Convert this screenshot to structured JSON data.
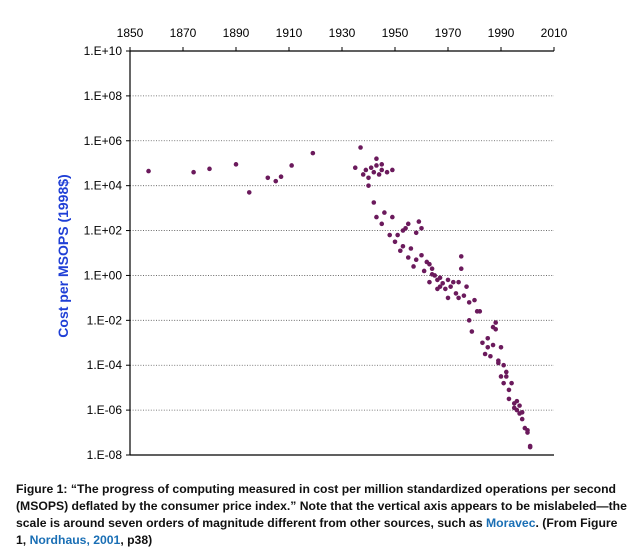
{
  "chart_data": {
    "type": "scatter",
    "title": "",
    "ylabel": "Cost per MSOPS (1998$)",
    "xlabel": "",
    "x_ticks": [
      "1850",
      "1870",
      "1890",
      "1910",
      "1930",
      "1950",
      "1970",
      "1990",
      "2010"
    ],
    "x_tick_values": [
      1850,
      1870,
      1890,
      1910,
      1930,
      1950,
      1970,
      1990,
      2010
    ],
    "y_ticks": [
      "1.E+10",
      "1.E+08",
      "1.E+06",
      "1.E+04",
      "1.E+02",
      "1.E+00",
      "1.E-02",
      "1.E-04",
      "1.E-06",
      "1.E-08"
    ],
    "y_tick_exponents": [
      10,
      8,
      6,
      4,
      2,
      0,
      -2,
      -4,
      -6,
      -8
    ],
    "xlim": [
      1850,
      2010
    ],
    "ylim_log10": [
      -8,
      10
    ],
    "y_scale": "log",
    "x_axis_position": "top",
    "grid": "horizontal dotted",
    "point_color": "#6b1a5c",
    "points_log10": [
      [
        1857,
        4.65
      ],
      [
        1874,
        4.6
      ],
      [
        1880,
        4.75
      ],
      [
        1890,
        4.95
      ],
      [
        1895,
        3.7
      ],
      [
        1902,
        4.35
      ],
      [
        1905,
        4.2
      ],
      [
        1907,
        4.4
      ],
      [
        1911,
        4.9
      ],
      [
        1919,
        5.45
      ],
      [
        1935,
        4.8
      ],
      [
        1937,
        5.7
      ],
      [
        1938,
        4.5
      ],
      [
        1939,
        4.7
      ],
      [
        1940,
        4.35
      ],
      [
        1940,
        4.0
      ],
      [
        1941,
        4.8
      ],
      [
        1942,
        4.6
      ],
      [
        1943,
        4.9
      ],
      [
        1943,
        5.2
      ],
      [
        1944,
        4.5
      ],
      [
        1945,
        4.7
      ],
      [
        1945,
        4.95
      ],
      [
        1947,
        4.6
      ],
      [
        1949,
        4.7
      ],
      [
        1942,
        3.25
      ],
      [
        1943,
        2.6
      ],
      [
        1945,
        2.3
      ],
      [
        1946,
        2.8
      ],
      [
        1948,
        1.8
      ],
      [
        1949,
        2.6
      ],
      [
        1950,
        1.5
      ],
      [
        1951,
        1.8
      ],
      [
        1952,
        1.1
      ],
      [
        1953,
        2.0
      ],
      [
        1953,
        1.3
      ],
      [
        1954,
        2.1
      ],
      [
        1955,
        0.8
      ],
      [
        1955,
        2.3
      ],
      [
        1956,
        1.2
      ],
      [
        1957,
        0.4
      ],
      [
        1958,
        1.9
      ],
      [
        1958,
        0.7
      ],
      [
        1959,
        2.4
      ],
      [
        1960,
        0.9
      ],
      [
        1960,
        2.1
      ],
      [
        1961,
        0.2
      ],
      [
        1962,
        0.6
      ],
      [
        1963,
        0.5
      ],
      [
        1963,
        -0.3
      ],
      [
        1964,
        0.3
      ],
      [
        1964,
        0.05
      ],
      [
        1965,
        0.0
      ],
      [
        1966,
        -0.2
      ],
      [
        1966,
        -0.6
      ],
      [
        1967,
        -0.5
      ],
      [
        1967,
        -0.1
      ],
      [
        1968,
        -0.35
      ],
      [
        1969,
        -0.6
      ],
      [
        1970,
        -0.2
      ],
      [
        1970,
        -1.0
      ],
      [
        1971,
        -0.5
      ],
      [
        1972,
        -0.3
      ],
      [
        1973,
        -0.8
      ],
      [
        1974,
        -1.0
      ],
      [
        1974,
        -0.3
      ],
      [
        1975,
        0.85
      ],
      [
        1975,
        0.3
      ],
      [
        1976,
        -0.9
      ],
      [
        1977,
        -0.5
      ],
      [
        1978,
        -2.0
      ],
      [
        1978,
        -1.2
      ],
      [
        1979,
        -2.5
      ],
      [
        1980,
        -1.1
      ],
      [
        1981,
        -1.6
      ],
      [
        1982,
        -1.6
      ],
      [
        1983,
        -3.0
      ],
      [
        1984,
        -3.5
      ],
      [
        1985,
        -3.2
      ],
      [
        1985,
        -2.8
      ],
      [
        1986,
        -3.6
      ],
      [
        1987,
        -3.1
      ],
      [
        1987,
        -2.3
      ],
      [
        1988,
        -2.1
      ],
      [
        1988,
        -2.4
      ],
      [
        1989,
        -3.8
      ],
      [
        1989,
        -3.9
      ],
      [
        1990,
        -4.5
      ],
      [
        1990,
        -3.2
      ],
      [
        1991,
        -4.8
      ],
      [
        1991,
        -4.0
      ],
      [
        1992,
        -4.5
      ],
      [
        1992,
        -4.3
      ],
      [
        1993,
        -5.5
      ],
      [
        1993,
        -5.1
      ],
      [
        1994,
        -4.8
      ],
      [
        1995,
        -5.7
      ],
      [
        1995,
        -5.9
      ],
      [
        1996,
        -5.6
      ],
      [
        1996,
        -6.0
      ],
      [
        1997,
        -5.8
      ],
      [
        1997,
        -6.15
      ],
      [
        1998,
        -6.4
      ],
      [
        1998,
        -6.1
      ],
      [
        1999,
        -6.8
      ],
      [
        2000,
        -7.0
      ],
      [
        2000,
        -6.9
      ],
      [
        2001,
        -7.6
      ],
      [
        2001,
        -7.65
      ]
    ]
  },
  "caption": {
    "text_1": "Figure 1: “The progress of computing measured in cost per million standardized operations per second (MSOPS) deflated by the consumer price index.” Note that the vertical axis appears to be mislabeled—the scale is around seven orders of magnitude different from other sources, such as ",
    "link_1": "Moravec",
    "text_2": ". (From Figure 1, ",
    "link_2": "Nordhaus, 2001",
    "text_3": ", p38)"
  }
}
